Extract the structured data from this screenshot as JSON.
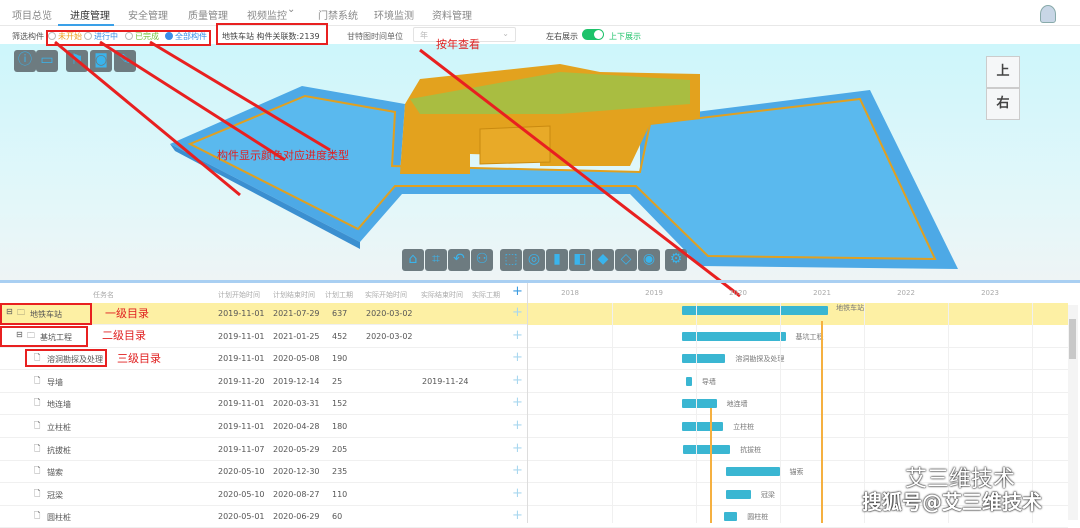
{
  "nav": {
    "items": [
      "项目总览",
      "进度管理",
      "安全管理",
      "质量管理",
      "视频监控",
      "门禁系统",
      "环境监测",
      "资料管理"
    ],
    "active": 1,
    "dropdown_icon": "chevron-down-icon"
  },
  "filter": {
    "label": "筛选构件",
    "options": [
      "未开始",
      "进行中",
      "已完成",
      "全部构件"
    ],
    "selected": 3,
    "option_colors": [
      "#f0a020",
      "#3a8ee8",
      "#7ac040",
      "#3a8ee8"
    ],
    "info": "地铁车站 构件关联数:2139",
    "time_unit_label": "甘特图时间单位",
    "time_unit_value": "年",
    "layout_left": "左右展示",
    "layout_right": "上下展示",
    "layout_toggle_on": true
  },
  "viewer": {
    "cube_top": "上",
    "cube_right": "右",
    "toolbar_icons": [
      "info-icon",
      "ruler-icon",
      "bookmark-icon",
      "camera-icon",
      "pen-icon",
      "home-icon",
      "fit-icon",
      "undo-icon",
      "walk-icon",
      "select-icon",
      "hide-icon",
      "section-icon",
      "box-icon",
      "cube-icon",
      "wireframe-icon",
      "palette-icon",
      "settings-icon"
    ]
  },
  "annotations": {
    "by_year": "按年查看",
    "color_type": "构件显示颜色对应进度类型",
    "level1": "一级目录",
    "level2": "二级目录",
    "level3": "三级目录"
  },
  "table": {
    "headers": [
      "任务名",
      "计划开始时间",
      "计划结束时间",
      "计划工期",
      "实际开始时间",
      "实际结束时间",
      "实际工期"
    ],
    "rows": [
      {
        "name": "地铁车站",
        "level": 1,
        "plan_start": "2019-11-01",
        "plan_end": "2021-07-29",
        "plan_days": "637",
        "act_start": "2020-03-02",
        "act_end": "",
        "act_days": ""
      },
      {
        "name": "基坑工程",
        "level": 2,
        "plan_start": "2019-11-01",
        "plan_end": "2021-01-25",
        "plan_days": "452",
        "act_start": "2020-03-02",
        "act_end": "",
        "act_days": ""
      },
      {
        "name": "溶洞勘探及处理",
        "level": 3,
        "plan_start": "2019-11-01",
        "plan_end": "2020-05-08",
        "plan_days": "190",
        "act_start": "",
        "act_end": "",
        "act_days": ""
      },
      {
        "name": "导墙",
        "level": 3,
        "plan_start": "2019-11-20",
        "plan_end": "2019-12-14",
        "plan_days": "25",
        "act_start": "",
        "act_end": "2019-11-24",
        "act_days": ""
      },
      {
        "name": "地连墙",
        "level": 3,
        "plan_start": "2019-11-01",
        "plan_end": "2020-03-31",
        "plan_days": "152",
        "act_start": "",
        "act_end": "",
        "act_days": ""
      },
      {
        "name": "立柱桩",
        "level": 3,
        "plan_start": "2019-11-01",
        "plan_end": "2020-04-28",
        "plan_days": "180",
        "act_start": "",
        "act_end": "",
        "act_days": ""
      },
      {
        "name": "抗拔桩",
        "level": 3,
        "plan_start": "2019-11-07",
        "plan_end": "2020-05-29",
        "plan_days": "205",
        "act_start": "",
        "act_end": "",
        "act_days": ""
      },
      {
        "name": "锚索",
        "level": 3,
        "plan_start": "2020-05-10",
        "plan_end": "2020-12-30",
        "plan_days": "235",
        "act_start": "",
        "act_end": "",
        "act_days": ""
      },
      {
        "name": "冠梁",
        "level": 3,
        "plan_start": "2020-05-10",
        "plan_end": "2020-08-27",
        "plan_days": "110",
        "act_start": "",
        "act_end": "",
        "act_days": ""
      },
      {
        "name": "圆柱桩",
        "level": 3,
        "plan_start": "2020-05-01",
        "plan_end": "2020-06-29",
        "plan_days": "60",
        "act_start": "",
        "act_end": "",
        "act_days": ""
      }
    ]
  },
  "gantt": {
    "years": [
      "2018",
      "2019",
      "2020",
      "2021",
      "2022",
      "2023"
    ],
    "bar_color": "#3ab6d2"
  },
  "watermark": {
    "line1": "艾三维技术",
    "line2": "搜狐号@艾三维技术"
  }
}
